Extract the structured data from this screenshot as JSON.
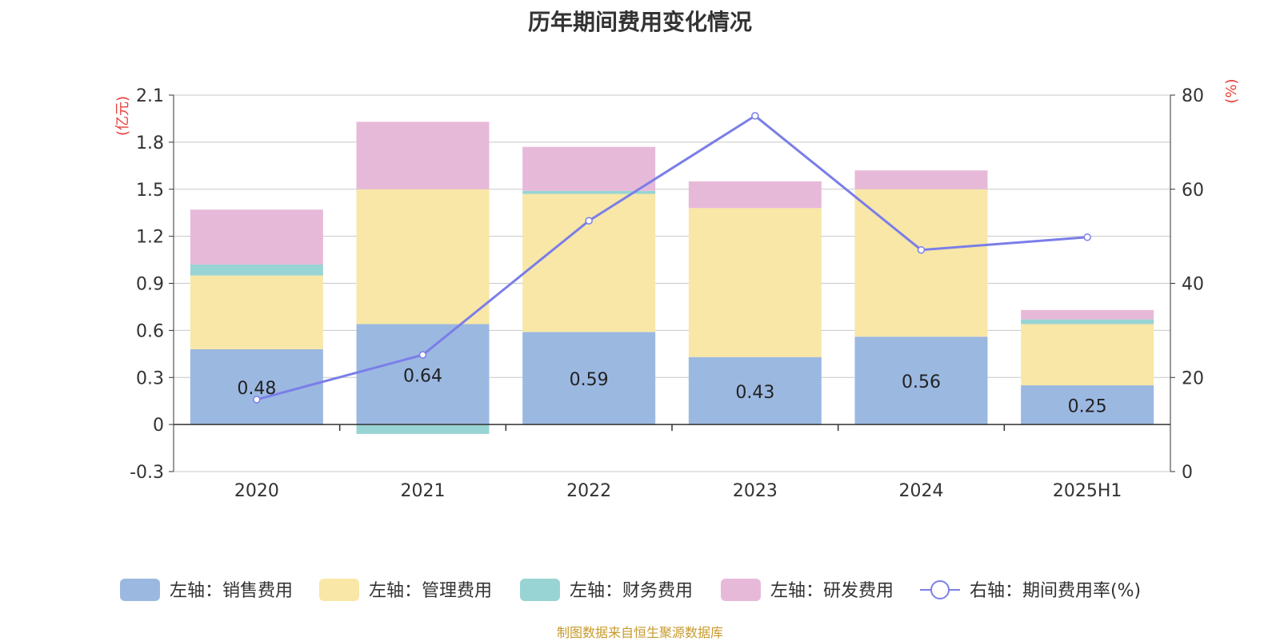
{
  "title": "历年期间费用变化情况",
  "source": "制图数据来自恒生聚源数据库",
  "source_color": "#c79a2c",
  "chart_data": {
    "type": "bar",
    "stacked": true,
    "categories": [
      "2020",
      "2021",
      "2022",
      "2023",
      "2024",
      "2025H1"
    ],
    "series": [
      {
        "name": "左轴：销售费用",
        "axis": "left",
        "color": "#9bb8e1",
        "values": [
          0.48,
          0.64,
          0.59,
          0.43,
          0.56,
          0.25
        ],
        "show_labels": true
      },
      {
        "name": "左轴：管理费用",
        "axis": "left",
        "color": "#f8e7a7",
        "values": [
          0.47,
          0.86,
          0.88,
          0.95,
          0.94,
          0.39
        ]
      },
      {
        "name": "左轴：财务费用",
        "axis": "left",
        "color": "#98d4d3",
        "values": [
          0.07,
          -0.06,
          0.02,
          0.0,
          0.0,
          0.03
        ]
      },
      {
        "name": "左轴：研发费用",
        "axis": "left",
        "color": "#e7b9d9",
        "values": [
          0.35,
          0.43,
          0.28,
          0.17,
          0.12,
          0.06
        ]
      },
      {
        "name": "右轴：期间费用率(%)",
        "axis": "right",
        "type": "line",
        "color": "#7a7ee8",
        "values": [
          15.3,
          24.8,
          53.3,
          75.6,
          47.1,
          49.8
        ]
      }
    ],
    "y_left": {
      "unit": "(亿元)",
      "min": -0.3,
      "max": 2.1,
      "ticks": [
        "2.1",
        "1.8",
        "1.5",
        "1.2",
        "0.9",
        "0.6",
        "0.3",
        "0",
        "-0.3"
      ]
    },
    "y_right": {
      "unit": "(%)",
      "min": 0,
      "max": 80,
      "ticks": [
        "80",
        "60",
        "40",
        "20",
        "0"
      ]
    },
    "legend_position": "bottom",
    "grid": true,
    "axis_unit_color": "#e8403a"
  }
}
